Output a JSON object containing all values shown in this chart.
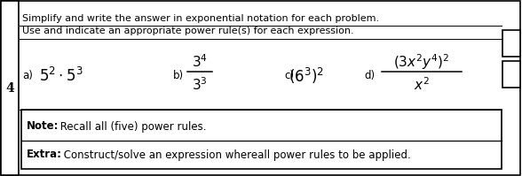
{
  "figsize": [
    5.88,
    1.99
  ],
  "dpi": 100,
  "bg_color": "#ffffff",
  "row_num": "4",
  "header_line1": "Simplify and write the answer in exponential notation for each problem.",
  "header_line2": "Use and indicate an appropriate power rule(s) for each expression.",
  "label_a": "a)",
  "label_b": "b)",
  "label_c": "c)",
  "label_d": "d)",
  "expr_a": "$5^{2} \\cdot 5^{3}$",
  "expr_b_num": "$3^{4}$",
  "expr_b_den": "$3^{3}$",
  "expr_c": "$(6^{3})^{2}$",
  "expr_d_num": "$(3x^{2}y^{4})^{2}$",
  "expr_d_den": "$x^{2}$",
  "note_bold": "Note:",
  "note_rest": " Recall all (five) power rules.",
  "extra_bold": "Extra:",
  "extra_rest": " Construct/solve an expression whereall power rules to be applied."
}
